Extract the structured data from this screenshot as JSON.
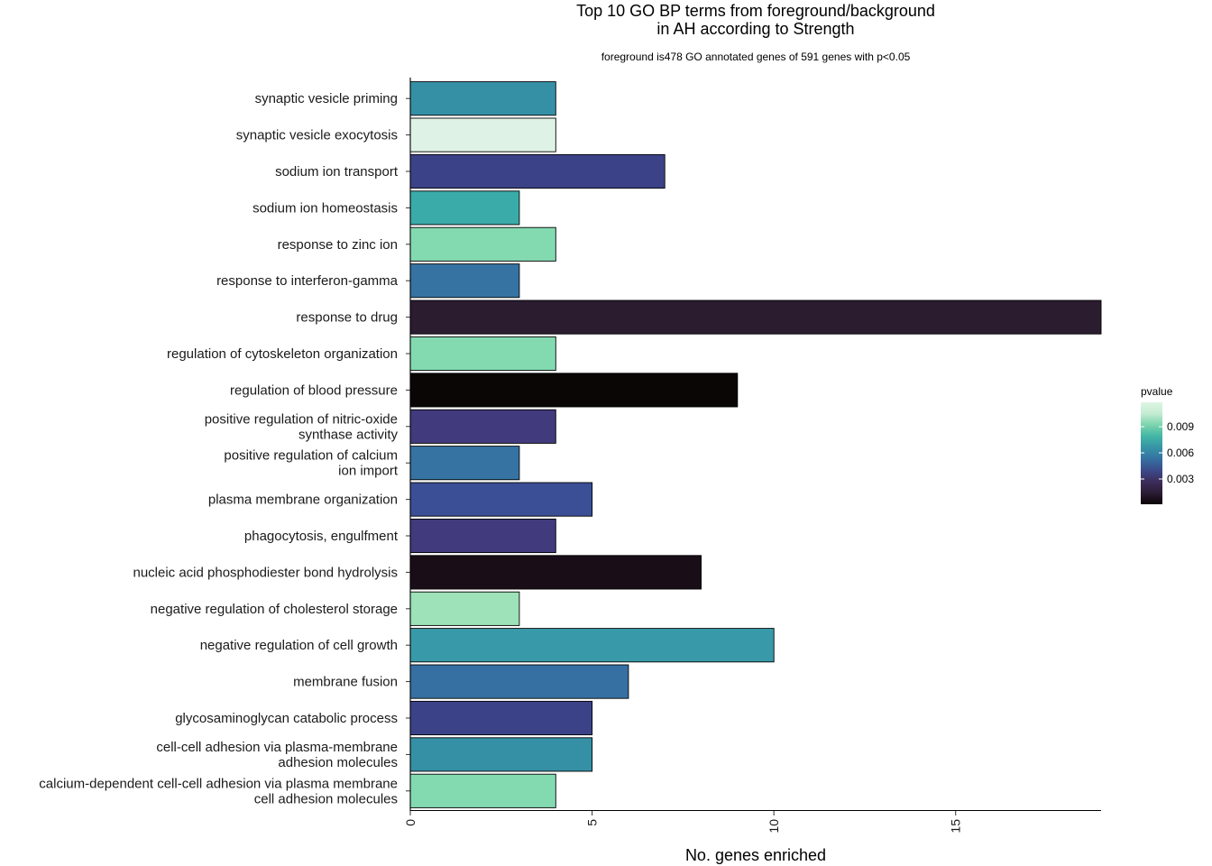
{
  "chart_data": {
    "type": "bar",
    "orientation": "horizontal",
    "title_line1": "Top 10 GO BP terms from foreground/background",
    "title_line2": "in AH according to Strength",
    "subtitle": "foreground is478 GO annotated genes of 591 genes with p<0.05",
    "xlabel": "No. genes enriched",
    "ylabel": "",
    "xlim": [
      0,
      19
    ],
    "xticks": [
      "0",
      "5",
      "10",
      "15"
    ],
    "xtick_values": [
      0,
      5,
      10,
      15
    ],
    "categories": [
      [
        "synaptic vesicle priming"
      ],
      [
        "synaptic vesicle exocytosis"
      ],
      [
        "sodium ion transport"
      ],
      [
        "sodium ion homeostasis"
      ],
      [
        "response to zinc ion"
      ],
      [
        "response to interferon-gamma"
      ],
      [
        "response to drug"
      ],
      [
        "regulation of cytoskeleton organization"
      ],
      [
        "regulation of blood pressure"
      ],
      [
        "positive regulation of nitric-oxide",
        "synthase activity"
      ],
      [
        "positive regulation of calcium",
        "ion import"
      ],
      [
        "plasma membrane organization"
      ],
      [
        "phagocytosis, engulfment"
      ],
      [
        "nucleic acid phosphodiester bond hydrolysis"
      ],
      [
        "negative regulation of cholesterol storage"
      ],
      [
        "negative regulation of cell growth"
      ],
      [
        "membrane fusion"
      ],
      [
        "glycosaminoglycan catabolic process"
      ],
      [
        "cell-cell adhesion via plasma-membrane",
        "adhesion molecules"
      ],
      [
        "calcium-dependent cell-cell adhesion via plasma membrane",
        "cell adhesion molecules"
      ]
    ],
    "values": [
      4,
      4,
      7,
      3,
      4,
      3,
      19,
      4,
      9,
      4,
      3,
      5,
      4,
      8,
      3,
      10,
      6,
      5,
      5,
      4
    ],
    "pvalues": [
      0.0072,
      0.0118,
      0.004,
      0.008,
      0.01,
      0.0063,
      0.0012,
      0.01,
      0.0001,
      0.003,
      0.0063,
      0.0044,
      0.0033,
      0.0006,
      0.0106,
      0.0075,
      0.0059,
      0.004,
      0.0073,
      0.01
    ],
    "fill_colors": [
      "#3590a6",
      "#def3e6",
      "#3c4288",
      "#3aaba8",
      "#83dab1",
      "#3673a2",
      "#2b1c30",
      "#83dab1",
      "#0b0606",
      "#413a7d",
      "#3673a2",
      "#3a4f95",
      "#413a7d",
      "#190e18",
      "#9de2b8",
      "#389aa8",
      "#3670a2",
      "#3c4288",
      "#3590a6",
      "#83dab1"
    ],
    "legend": {
      "title": "pvalue",
      "placement": "right",
      "labels": [
        "0.009",
        "0.006",
        "0.003"
      ],
      "label_values": [
        0.009,
        0.006,
        0.003
      ],
      "range": [
        0.0001,
        0.0118
      ],
      "colors": [
        "#0b0405",
        "#2b1c35",
        "#3d2d5b",
        "#3c4a8a",
        "#3570a2",
        "#3794a6",
        "#43b5a5",
        "#7ad4ad",
        "#c4ecd2",
        "#def5e5"
      ]
    },
    "grid": false
  }
}
